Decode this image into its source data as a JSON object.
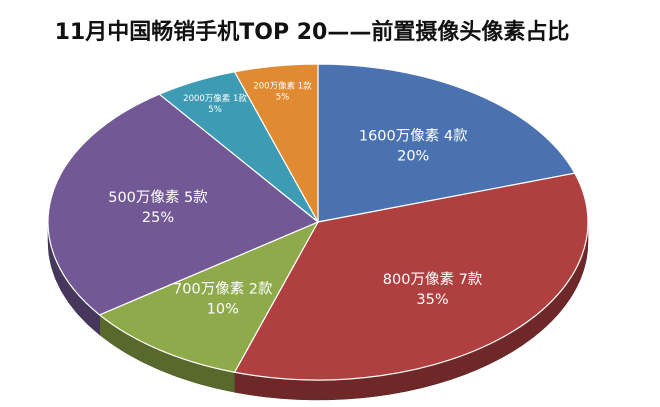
{
  "chart_data": {
    "type": "pie",
    "title": "11月中国畅销手机TOP 20——前置摄像头像素占比",
    "slices": [
      {
        "label": "1600万像素 4款",
        "percent_label": "20%",
        "count": 4,
        "percent": 20,
        "color": "#4a72b0"
      },
      {
        "label": "800万像素 7款",
        "percent_label": "35%",
        "count": 7,
        "percent": 35,
        "color": "#b0403f"
      },
      {
        "label": "700万像素  2款",
        "percent_label": "10%",
        "count": 2,
        "percent": 10,
        "color": "#8faa4a"
      },
      {
        "label": "500万像素 5款",
        "percent_label": "25%",
        "count": 5,
        "percent": 25,
        "color": "#725894"
      },
      {
        "label": "2000万像素 1款",
        "percent_label": "5%",
        "count": 1,
        "percent": 5,
        "color": "#3d9bb3"
      },
      {
        "label": "200万像素 1款",
        "percent_label": "5%",
        "count": 1,
        "percent": 5,
        "color": "#e08a32"
      }
    ]
  }
}
